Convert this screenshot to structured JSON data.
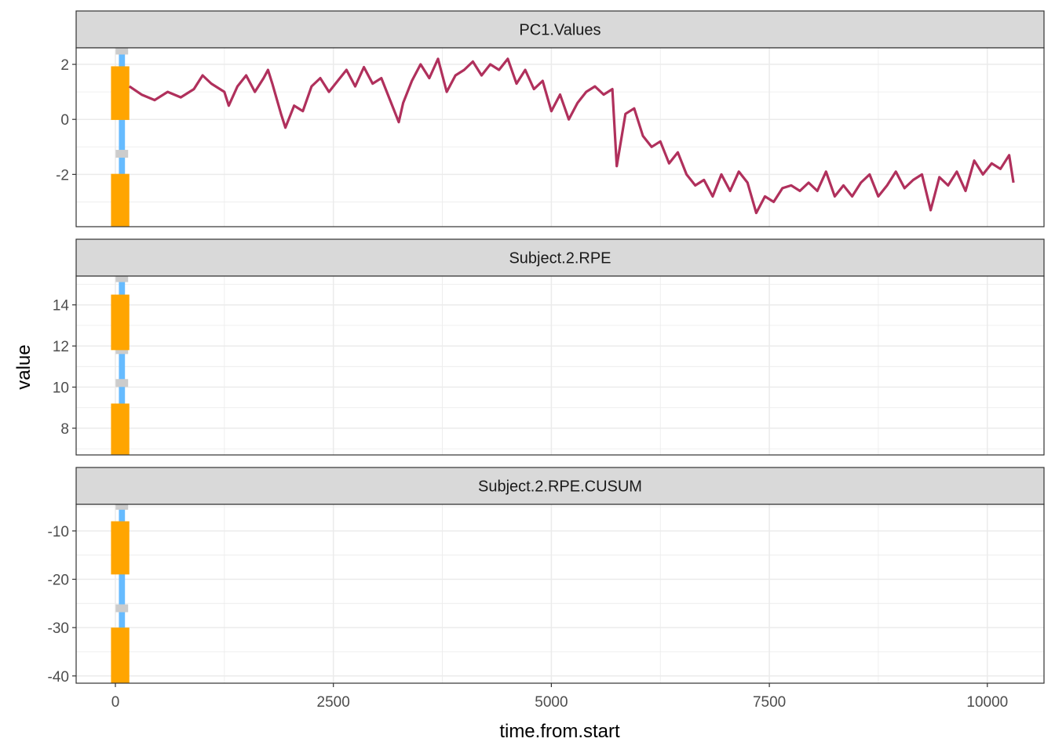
{
  "chart_data": {
    "type": "line",
    "xlabel": "time.from.start",
    "ylabel": "value",
    "xlim": [
      -450,
      10650
    ],
    "x_ticks": [
      0,
      2500,
      5000,
      7500,
      10000
    ],
    "x_tick_labels": [
      "0",
      "2500",
      "5000",
      "7500",
      "10000"
    ],
    "grid": true,
    "colors": {
      "series_line": "#b0305c",
      "highlight_bar": "#ffa500",
      "blue_band": "#66bbff",
      "gray_marker": "#cccccc",
      "strip_fill": "#d9d9d9",
      "grid": "#ebebeb"
    },
    "highlight": {
      "blue_band_x": [
        40,
        110
      ],
      "bar_x": [
        -50,
        160
      ]
    },
    "panels": [
      {
        "title": "PC1.Values",
        "ylim": [
          -3.9,
          2.6
        ],
        "y_ticks": [
          -2,
          0,
          2
        ],
        "y_tick_labels": [
          "-2",
          "0",
          "2"
        ],
        "orange_bars": [
          [
            -0.02,
            1.93
          ],
          [
            -3.95,
            -1.98
          ]
        ],
        "gray_markers": [
          2.5,
          -1.25
        ],
        "series": {
          "name": "",
          "x": [
            160,
            300,
            450,
            600,
            750,
            900,
            1000,
            1100,
            1250,
            1300,
            1400,
            1500,
            1600,
            1700,
            1750,
            1800,
            1900,
            1950,
            2050,
            2150,
            2250,
            2350,
            2450,
            2550,
            2650,
            2750,
            2850,
            2950,
            3050,
            3150,
            3250,
            3300,
            3400,
            3500,
            3600,
            3700,
            3800,
            3900,
            4000,
            4100,
            4200,
            4300,
            4400,
            4500,
            4600,
            4700,
            4800,
            4900,
            5000,
            5100,
            5200,
            5300,
            5400,
            5500,
            5600,
            5700,
            5750,
            5850,
            5950,
            6050,
            6150,
            6250,
            6350,
            6450,
            6550,
            6650,
            6750,
            6850,
            6950,
            7050,
            7150,
            7250,
            7350,
            7450,
            7550,
            7650,
            7750,
            7850,
            7950,
            8050,
            8150,
            8250,
            8350,
            8450,
            8550,
            8650,
            8750,
            8850,
            8950,
            9050,
            9150,
            9250,
            9350,
            9450,
            9550,
            9650,
            9750,
            9850,
            9950,
            10050,
            10150,
            10250,
            10300
          ],
          "values": [
            1.2,
            0.9,
            0.7,
            1.0,
            0.8,
            1.1,
            1.6,
            1.3,
            1.0,
            0.5,
            1.2,
            1.6,
            1.0,
            1.5,
            1.8,
            1.3,
            0.2,
            -0.3,
            0.5,
            0.3,
            1.2,
            1.5,
            1.0,
            1.4,
            1.8,
            1.2,
            1.9,
            1.3,
            1.5,
            0.7,
            -0.1,
            0.6,
            1.4,
            2.0,
            1.5,
            2.2,
            1.0,
            1.6,
            1.8,
            2.1,
            1.6,
            2.0,
            1.8,
            2.2,
            1.3,
            1.8,
            1.1,
            1.4,
            0.3,
            0.9,
            0.0,
            0.6,
            1.0,
            1.2,
            0.9,
            1.1,
            -1.7,
            0.2,
            0.4,
            -0.6,
            -1.0,
            -0.8,
            -1.6,
            -1.2,
            -2.0,
            -2.4,
            -2.2,
            -2.8,
            -2.0,
            -2.6,
            -1.9,
            -2.3,
            -3.4,
            -2.8,
            -3.0,
            -2.5,
            -2.4,
            -2.6,
            -2.3,
            -2.6,
            -1.9,
            -2.8,
            -2.4,
            -2.8,
            -2.3,
            -2.0,
            -2.8,
            -2.4,
            -1.9,
            -2.5,
            -2.2,
            -2.0,
            -3.3,
            -2.1,
            -2.4,
            -1.9,
            -2.6,
            -1.5,
            -2.0,
            -1.6,
            -1.8,
            -1.3,
            -2.3
          ]
        }
      },
      {
        "title": "Subject.2.RPE",
        "ylim": [
          6.7,
          15.4
        ],
        "y_ticks": [
          8,
          10,
          12,
          14
        ],
        "y_tick_labels": [
          "8",
          "10",
          "12",
          "14"
        ],
        "orange_bars": [
          [
            11.8,
            14.5
          ],
          [
            6.7,
            9.2
          ]
        ],
        "gray_markers": [
          15.3,
          10.2,
          11.8
        ]
      },
      {
        "title": "Subject.2.RPE.CUSUM",
        "ylim": [
          -41.5,
          -4.5
        ],
        "y_ticks": [
          -40,
          -30,
          -20,
          -10
        ],
        "y_tick_labels": [
          "-40",
          "-30",
          "-20",
          "-10"
        ],
        "orange_bars": [
          [
            -19.0,
            -8.0
          ],
          [
            -41.5,
            -30.0
          ]
        ],
        "gray_markers": [
          -4.8,
          -26.0
        ]
      }
    ]
  }
}
